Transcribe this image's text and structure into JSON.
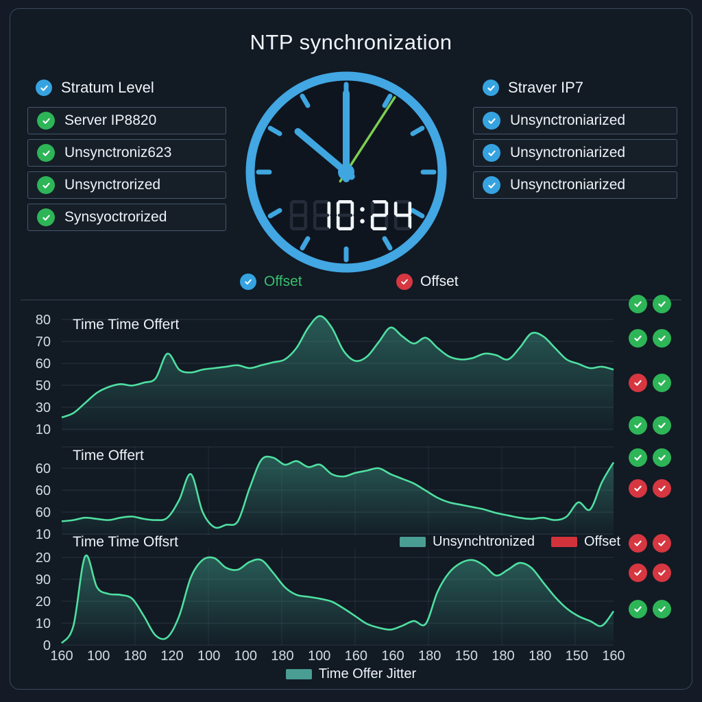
{
  "title": "NTP synchronization",
  "left_panel": {
    "header": {
      "label": "Stratum Level",
      "icon": "blue-check"
    },
    "items": [
      {
        "label": "Server IP8820",
        "icon": "green-check"
      },
      {
        "label": "Unsynctroniz623",
        "icon": "green-check"
      },
      {
        "label": "Unsynctrorized",
        "icon": "green-check"
      },
      {
        "label": "Synsyoctrorized",
        "icon": "green-check"
      }
    ]
  },
  "right_panel": {
    "header": {
      "label": "Straver IP7",
      "icon": "blue-check"
    },
    "items": [
      {
        "label": "Unsynctroniarized",
        "icon": "blue-check"
      },
      {
        "label": "Unsynctroniarized",
        "icon": "blue-check"
      },
      {
        "label": "Unsynctroniarized",
        "icon": "blue-check"
      }
    ]
  },
  "clock": {
    "digital_time": "10:24",
    "analog": {
      "hour_angle_deg": -50,
      "minute_angle_deg": 0,
      "second_angle_deg": 33
    }
  },
  "clock_legend": [
    {
      "icon": "blue-check",
      "label": "Offset",
      "color": "#35c16b"
    },
    {
      "icon": "red-check",
      "label": "Offset",
      "color": "#f2f6fa"
    }
  ],
  "mid_legend": [
    {
      "swatch_color": "#4a9d92",
      "label": "Unsynchtronized"
    },
    {
      "swatch_color": "#d2333b",
      "label": "Offset"
    }
  ],
  "bottom_legend": [
    {
      "swatch_color": "#4a9d92",
      "label": "Time Offer Jitter"
    }
  ],
  "status_grid": {
    "rows": [
      {
        "y": 443,
        "cells": [
          "green",
          "green"
        ]
      },
      {
        "y": 493,
        "cells": [
          "green",
          "green"
        ]
      },
      {
        "y": 558,
        "cells": [
          "red",
          "green"
        ]
      },
      {
        "y": 620,
        "cells": [
          "green",
          "green"
        ]
      },
      {
        "y": 667,
        "cells": [
          "green",
          "green"
        ]
      },
      {
        "y": 712,
        "cells": [
          "red",
          "red"
        ]
      },
      {
        "y": 792,
        "cells": [
          "red",
          "red"
        ]
      },
      {
        "y": 835,
        "cells": [
          "red",
          "red"
        ]
      },
      {
        "y": 888,
        "cells": [
          "green",
          "green"
        ]
      }
    ]
  },
  "chart_data": [
    {
      "type": "area",
      "title": "Time Time Offert",
      "yticks": [
        "80",
        "70",
        "60",
        "50",
        "30",
        "10"
      ],
      "ylim": [
        0,
        88
      ],
      "grid": "horizontal",
      "values": [
        10,
        13,
        20,
        27,
        31,
        33,
        32,
        34,
        37,
        54,
        43,
        41,
        43,
        44,
        45,
        46,
        44,
        46,
        48,
        50,
        58,
        72,
        80,
        72,
        56,
        49,
        52,
        62,
        72,
        66,
        61,
        65,
        58,
        52,
        50,
        51,
        54,
        53,
        50,
        58,
        68,
        66,
        58,
        50,
        47,
        44,
        45,
        43
      ]
    },
    {
      "type": "area",
      "title": "Time Offert",
      "yticks": [
        "60",
        "60",
        "60",
        "10"
      ],
      "ylim": [
        0,
        75
      ],
      "grid": "both",
      "values": [
        12,
        13,
        15,
        14,
        13,
        15,
        16,
        14,
        13,
        15,
        30,
        52,
        20,
        7,
        9,
        12,
        40,
        64,
        66,
        60,
        63,
        58,
        60,
        52,
        50,
        53,
        55,
        57,
        52,
        48,
        44,
        38,
        32,
        28,
        26,
        24,
        22,
        19,
        17,
        15,
        14,
        15,
        13,
        16,
        28,
        22,
        45,
        62
      ]
    },
    {
      "type": "area",
      "title": "Time Time Offsrt",
      "yticks": [
        "20",
        "90",
        "20",
        "10",
        "0"
      ],
      "xticks": [
        "160",
        "100",
        "180",
        "120",
        "100",
        "100",
        "180",
        "100",
        "160",
        "160",
        "180",
        "150",
        "180",
        "180",
        "150",
        "160"
      ],
      "ylim": [
        0,
        100
      ],
      "grid": "both",
      "values": [
        2,
        20,
        92,
        60,
        53,
        52,
        48,
        30,
        10,
        8,
        30,
        70,
        88,
        90,
        80,
        78,
        86,
        88,
        75,
        60,
        52,
        50,
        48,
        45,
        38,
        30,
        22,
        18,
        16,
        20,
        25,
        22,
        55,
        75,
        85,
        88,
        82,
        72,
        78,
        85,
        80,
        65,
        50,
        38,
        30,
        25,
        20,
        35
      ]
    }
  ],
  "colors": {
    "background": "#141b26",
    "panel_border": "#3a4a5e",
    "accent_blue": "#36a3e0",
    "accent_green": "#2db557",
    "accent_red": "#d63741",
    "line_green": "#4fe0a1",
    "area_teal": "#3e9b87",
    "second_hand_green": "#7ccf52"
  }
}
